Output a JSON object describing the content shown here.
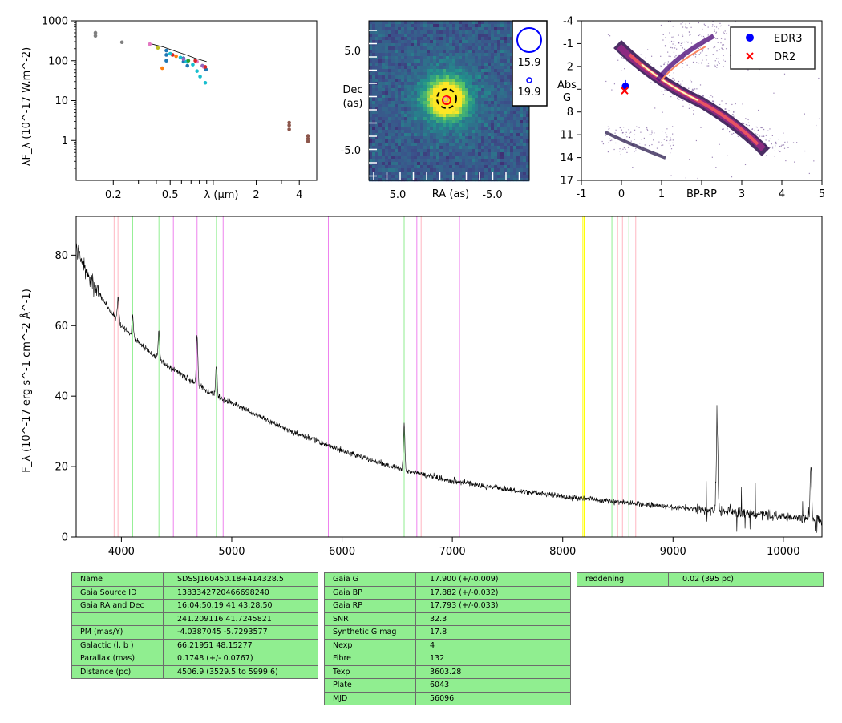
{
  "colors": {
    "edr3": "#0000ff",
    "dr2": "#ff0000",
    "table_bg": "#90ee90",
    "spectrum": "#000000"
  },
  "chart_data": [
    {
      "type": "scatter",
      "title": "",
      "xlabel": "λ (µm)",
      "ylabel": "λF_λ (10^-17 W.m^-2)",
      "xscale": "log",
      "yscale": "log",
      "xlim": [
        0.11,
        5.3
      ],
      "ylim": [
        0.1,
        1000
      ],
      "xticklabels": [
        "0.2",
        "0.5",
        "2",
        "4"
      ],
      "yticklabels": [
        "1",
        "10",
        "100",
        "1000"
      ],
      "series": [
        {
          "color": "#7f7f7f",
          "points": [
            [
              0.15,
              500
            ],
            [
              0.15,
              420
            ],
            [
              0.23,
              290
            ]
          ]
        },
        {
          "color": "#e377c2",
          "points": [
            [
              0.36,
              260
            ],
            [
              0.77,
              95
            ],
            [
              0.86,
              70
            ]
          ]
        },
        {
          "color": "#bcbd22",
          "points": [
            [
              0.41,
              210
            ]
          ]
        },
        {
          "color": "#1f77b4",
          "points": [
            [
              0.47,
              180
            ],
            [
              0.47,
              140
            ],
            [
              0.62,
              115
            ],
            [
              0.62,
              95
            ],
            [
              0.66,
              75
            ],
            [
              0.47,
              100
            ],
            [
              0.89,
              60
            ]
          ]
        },
        {
          "color": "#ff7f0e",
          "points": [
            [
              0.44,
              65
            ],
            [
              0.55,
              130
            ]
          ]
        },
        {
          "color": "#d62728",
          "points": [
            [
              0.52,
              140
            ],
            [
              0.75,
              100
            ],
            [
              0.88,
              70
            ]
          ]
        },
        {
          "color": "#17becf",
          "points": [
            [
              0.59,
              120
            ],
            [
              0.65,
              95
            ],
            [
              0.72,
              80
            ],
            [
              0.77,
              55
            ],
            [
              0.81,
              40
            ],
            [
              0.88,
              28
            ],
            [
              0.5,
              150
            ]
          ]
        },
        {
          "color": "#2ca02c",
          "points": [
            [
              0.67,
              100
            ]
          ]
        },
        {
          "color": "#9467bd",
          "points": [
            [
              0.62,
              110
            ],
            [
              0.84,
              75
            ]
          ]
        },
        {
          "color": "#8c564b",
          "points": [
            [
              3.4,
              2.8
            ],
            [
              3.4,
              2.4
            ],
            [
              3.4,
              1.9
            ],
            [
              4.6,
              1.3
            ],
            [
              4.6,
              1.1
            ],
            [
              4.6,
              0.95
            ]
          ]
        }
      ],
      "model_curve": [
        [
          0.36,
          270
        ],
        [
          0.45,
          220
        ],
        [
          0.55,
          170
        ],
        [
          0.65,
          140
        ],
        [
          0.75,
          115
        ],
        [
          0.9,
          95
        ]
      ]
    },
    {
      "type": "heatmap",
      "xlabel": "RA (as)",
      "ylabel": "Dec (as)",
      "xticklabels": [
        "5.0",
        "-5.0"
      ],
      "yticklabels": [
        "5.0",
        "-5.0"
      ],
      "legend": [
        {
          "label": "15.9",
          "marker": "circle-large"
        },
        {
          "label": "19.9",
          "marker": "circle-small"
        }
      ]
    },
    {
      "type": "scatter",
      "xlabel": "BP-RP",
      "ylabel": "Abs G",
      "xlim": [
        -1,
        5
      ],
      "ylim": [
        17,
        -4
      ],
      "xticklabels": [
        "-1",
        "0",
        "1",
        "3",
        "4",
        "5"
      ],
      "yticklabels": [
        "-4",
        "-1",
        "2",
        "5",
        "8",
        "11",
        "14",
        "17"
      ],
      "legend_position": "top-right",
      "series": [
        {
          "name": "EDR3",
          "marker": "circle",
          "color": "#0000ff",
          "points": [
            [
              0.1,
              4.6
            ]
          ]
        },
        {
          "name": "DR2",
          "marker": "x",
          "color": "#ff0000",
          "points": [
            [
              0.08,
              5.2
            ]
          ]
        }
      ]
    },
    {
      "type": "line",
      "xlabel": "",
      "ylabel": "F_λ (10^-17 erg s^-1 cm^-2 Å^-1)",
      "xlim": [
        3590,
        10350
      ],
      "ylim": [
        0,
        91
      ],
      "xticks": [
        4000,
        5000,
        6000,
        7000,
        8000,
        9000,
        10000
      ],
      "yticks": [
        0,
        20,
        40,
        60,
        80
      ],
      "continuum": [
        [
          3590,
          82
        ],
        [
          3700,
          74
        ],
        [
          3800,
          69
        ],
        [
          3900,
          64
        ],
        [
          4000,
          60
        ],
        [
          4200,
          54
        ],
        [
          4400,
          49
        ],
        [
          4600,
          45
        ],
        [
          4800,
          41
        ],
        [
          5000,
          38
        ],
        [
          5200,
          35
        ],
        [
          5500,
          30.5
        ],
        [
          6000,
          24.5
        ],
        [
          6500,
          19.5
        ],
        [
          7000,
          16
        ],
        [
          7500,
          13.5
        ],
        [
          8000,
          11.5
        ],
        [
          8500,
          10
        ],
        [
          9000,
          8.5
        ],
        [
          9500,
          7.2
        ],
        [
          10000,
          5.8
        ],
        [
          10350,
          4.8
        ]
      ],
      "emission_lines": [
        [
          3970,
          7
        ],
        [
          4102,
          6
        ],
        [
          4340,
          8
        ],
        [
          4686,
          14
        ],
        [
          4861,
          9
        ],
        [
          6563,
          13
        ],
        [
          9400,
          25
        ],
        [
          10250,
          15
        ]
      ],
      "reference_lines": [
        {
          "color": "#ffb6c1",
          "x": [
            3934,
            3969,
            6717,
            8498,
            8542,
            8662
          ]
        },
        {
          "color": "#90ee90",
          "x": [
            4102,
            4340,
            4861,
            6563,
            8446,
            8600
          ]
        },
        {
          "color": "#ee82ee",
          "x": [
            4471,
            4686,
            4713,
            4922,
            5876,
            6678,
            7065
          ]
        },
        {
          "color": "#ffff00",
          "x": [
            8183,
            8195
          ]
        }
      ]
    }
  ],
  "tables": {
    "left": [
      [
        "Name",
        "SDSSJ160450.18+414328.5"
      ],
      [
        "Gaia Source ID",
        "1383342720466698240"
      ],
      [
        "Gaia RA and Dec",
        "16:04:50.19    41:43:28.50"
      ],
      [
        "",
        "241.209116    41.7245821"
      ],
      [
        "PM (mas/Y)",
        "-4.0387045    -5.7293577"
      ],
      [
        "Galactic (l, b )",
        "66.21951    48.15277"
      ],
      [
        "Parallax (mas)",
        "0.1748 (+/- 0.0767)"
      ],
      [
        "Distance (pc)",
        "4506.9 (3529.5 to 5999.6)"
      ]
    ],
    "middle": [
      [
        "Gaia G",
        "17.900 (+/-0.009)"
      ],
      [
        "Gaia BP",
        "17.882 (+/-0.032)"
      ],
      [
        "Gaia RP",
        "17.793 (+/-0.033)"
      ],
      [
        "SNR",
        "32.3"
      ],
      [
        "Synthetic G mag",
        "17.8"
      ],
      [
        "Nexp",
        "4"
      ],
      [
        "Fibre",
        "132"
      ],
      [
        "Texp",
        "3603.28"
      ],
      [
        "Plate",
        "6043"
      ],
      [
        "MJD",
        "56096"
      ]
    ],
    "right": [
      [
        "reddening",
        "0.02 (395 pc)"
      ]
    ]
  }
}
